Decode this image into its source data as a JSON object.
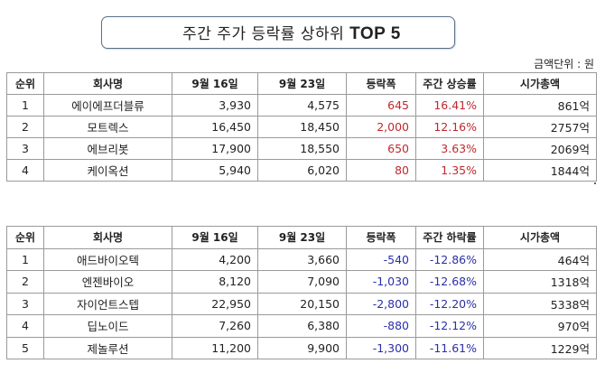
{
  "title": {
    "text": "주간 주가 등락률 상하위 ",
    "bold": "TOP 5"
  },
  "unit_label": "금액단위 : 원",
  "colors": {
    "up": "#c0282d",
    "down": "#2b2fa8",
    "title_border": "#5a6f8a"
  },
  "gainers": {
    "headers": [
      "순위",
      "회사명",
      "9월 16일",
      "9월 23일",
      "등락폭",
      "주간 상승률",
      "시가총액"
    ],
    "rows": [
      {
        "rank": "1",
        "name": "에이에프더블류",
        "sep16": "3,930",
        "sep23": "4,575",
        "change": "645",
        "pct": "16.41%",
        "cap": "861억"
      },
      {
        "rank": "2",
        "name": "모트렉스",
        "sep16": "16,450",
        "sep23": "18,450",
        "change": "2,000",
        "pct": "12.16%",
        "cap": "2757억"
      },
      {
        "rank": "3",
        "name": "에브리봇",
        "sep16": "17,900",
        "sep23": "18,550",
        "change": "650",
        "pct": "3.63%",
        "cap": "2069억"
      },
      {
        "rank": "4",
        "name": "케이옥션",
        "sep16": "5,940",
        "sep23": "6,020",
        "change": "80",
        "pct": "1.35%",
        "cap": "1844억"
      }
    ]
  },
  "losers": {
    "headers": [
      "순위",
      "회사명",
      "9월 16일",
      "9월 23일",
      "등락폭",
      "주간 하락률",
      "시가총액"
    ],
    "rows": [
      {
        "rank": "1",
        "name": "애드바이오텍",
        "sep16": "4,200",
        "sep23": "3,660",
        "change": "-540",
        "pct": "-12.86%",
        "cap": "464억"
      },
      {
        "rank": "2",
        "name": "엔젠바이오",
        "sep16": "8,120",
        "sep23": "7,090",
        "change": "-1,030",
        "pct": "-12.68%",
        "cap": "1318억"
      },
      {
        "rank": "3",
        "name": "자이언트스텝",
        "sep16": "22,950",
        "sep23": "20,150",
        "change": "-2,800",
        "pct": "-12.20%",
        "cap": "5338억"
      },
      {
        "rank": "4",
        "name": "딥노이드",
        "sep16": "7,260",
        "sep23": "6,380",
        "change": "-880",
        "pct": "-12.12%",
        "cap": "970억"
      },
      {
        "rank": "5",
        "name": "제놀루션",
        "sep16": "11,200",
        "sep23": "9,900",
        "change": "-1,300",
        "pct": "-11.61%",
        "cap": "1229억"
      }
    ]
  }
}
